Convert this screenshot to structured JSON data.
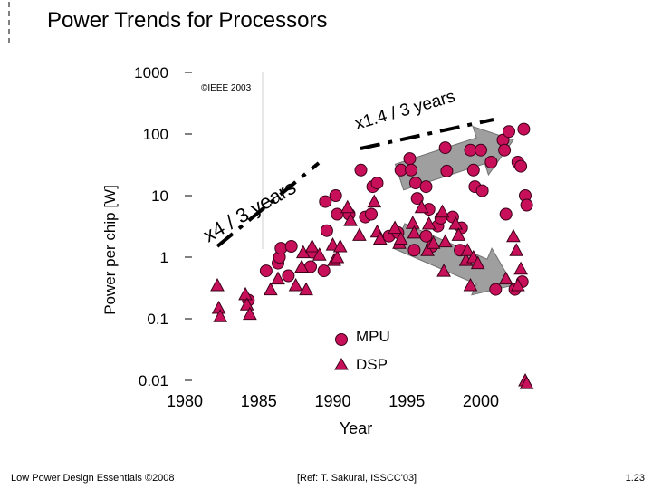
{
  "slide": {
    "title": "Power Trends for Processors",
    "footer_left": "Low Power Design Essentials ©2008",
    "footer_center": "[Ref: T. Sakurai, ISSCC'03]",
    "footer_right": "1.23"
  },
  "colors": {
    "marker_fill": "#c8105a",
    "marker_stroke": "#3a0018",
    "trend_arrow": "#9a9a9a",
    "title_bar": "#000000"
  },
  "chart_data": {
    "type": "scatter",
    "copyright": "©IEEE 2003",
    "xlabel": "Year",
    "ylabel": "Power per chip [W]",
    "x_scale": "linear",
    "y_scale": "log",
    "xlim": [
      1980,
      2003
    ],
    "ylim": [
      0.01,
      1000
    ],
    "x_ticks": [
      "1980",
      "1985",
      "1990",
      "1995",
      "2000"
    ],
    "y_ticks": [
      "1000",
      "100",
      "10",
      "1",
      "0.1",
      "0.01"
    ],
    "legend": {
      "placement": "bottom-right",
      "entries": [
        "MPU",
        "DSP"
      ]
    },
    "annotations": [
      {
        "text": "x4 / 3 years",
        "from": [
          1983.6,
          2.2
        ],
        "to": [
          1989.4,
          25
        ]
      },
      {
        "text": "x1.4 / 3 years",
        "from": [
          1983.6,
          2.2
        ],
        "to": [
          1990.4,
          38
        ],
        "extend_to": [
          2001.6,
          120
        ]
      },
      {
        "text": "x1.4 / 3 years",
        "label_only": true,
        "from": [
          1990.4,
          38
        ],
        "to": [
          2001.6,
          120
        ]
      }
    ],
    "trend_arrows": [
      {
        "from": [
          1994.5,
          20
        ],
        "to": [
          2002.2,
          80
        ],
        "description": "rising trend arrow"
      },
      {
        "from": [
          1994.5,
          2.2
        ],
        "to": [
          2002.2,
          0.35
        ],
        "description": "falling trend arrow"
      }
    ],
    "series": [
      {
        "name": "MPU",
        "marker": "circle",
        "points": [
          [
            1984.3,
            0.2
          ],
          [
            1985.5,
            0.6
          ],
          [
            1986.3,
            0.8
          ],
          [
            1986.4,
            1.0
          ],
          [
            1986.5,
            1.4
          ],
          [
            1987.0,
            0.5
          ],
          [
            1987.2,
            1.5
          ],
          [
            1988.5,
            0.7
          ],
          [
            1988.6,
            1.2
          ],
          [
            1989.4,
            0.6
          ],
          [
            1989.5,
            8
          ],
          [
            1989.6,
            2.7
          ],
          [
            1990.2,
            10
          ],
          [
            1990.3,
            5
          ],
          [
            1991.1,
            5
          ],
          [
            1991.9,
            26
          ],
          [
            1992.2,
            4.5
          ],
          [
            1992.6,
            5
          ],
          [
            1992.7,
            14
          ],
          [
            1993.0,
            16
          ],
          [
            1993.8,
            2.2
          ],
          [
            1994.4,
            2.5
          ],
          [
            1994.6,
            26
          ],
          [
            1995.2,
            40
          ],
          [
            1995.3,
            26
          ],
          [
            1995.5,
            1.3
          ],
          [
            1995.6,
            16
          ],
          [
            1995.7,
            9
          ],
          [
            1996.3,
            14
          ],
          [
            1996.3,
            2.2
          ],
          [
            1996.5,
            6
          ],
          [
            1996.7,
            1.5
          ],
          [
            1997.1,
            3.2
          ],
          [
            1997.3,
            4.3
          ],
          [
            1997.6,
            60
          ],
          [
            1997.7,
            25
          ],
          [
            1998.1,
            4.5
          ],
          [
            1998.6,
            1.3
          ],
          [
            1998.7,
            3
          ],
          [
            1999.3,
            55
          ],
          [
            1999.5,
            26
          ],
          [
            1999.6,
            14
          ],
          [
            2000.0,
            55
          ],
          [
            2000.1,
            12
          ],
          [
            2000.7,
            35
          ],
          [
            2001.0,
            0.3
          ],
          [
            2001.5,
            80
          ],
          [
            2001.6,
            55
          ],
          [
            2001.7,
            5
          ],
          [
            2001.9,
            110
          ],
          [
            2002.3,
            0.3
          ],
          [
            2002.5,
            35
          ],
          [
            2002.7,
            30
          ],
          [
            2002.8,
            0.4
          ],
          [
            2002.9,
            120
          ],
          [
            2003.0,
            10
          ],
          [
            2003.1,
            7
          ]
        ]
      },
      {
        "name": "DSP",
        "marker": "triangle",
        "points": [
          [
            1982.2,
            0.35
          ],
          [
            1982.3,
            0.15
          ],
          [
            1982.4,
            0.11
          ],
          [
            1984.1,
            0.25
          ],
          [
            1984.2,
            0.17
          ],
          [
            1984.4,
            0.12
          ],
          [
            1985.8,
            0.3
          ],
          [
            1986.3,
            0.45
          ],
          [
            1987.5,
            0.35
          ],
          [
            1987.9,
            0.7
          ],
          [
            1988.0,
            1.2
          ],
          [
            1988.2,
            0.3
          ],
          [
            1988.6,
            1.5
          ],
          [
            1989.1,
            1.1
          ],
          [
            1990.0,
            1.6
          ],
          [
            1990.1,
            0.9
          ],
          [
            1990.3,
            1.0
          ],
          [
            1990.5,
            1.5
          ],
          [
            1991.0,
            6.5
          ],
          [
            1991.2,
            4.0
          ],
          [
            1991.8,
            2.3
          ],
          [
            1992.8,
            8.0
          ],
          [
            1993.0,
            2.6
          ],
          [
            1993.2,
            2.0
          ],
          [
            1994.2,
            3.0
          ],
          [
            1994.5,
            1.7
          ],
          [
            1994.6,
            2.0
          ],
          [
            1995.4,
            3.6
          ],
          [
            1995.5,
            2.5
          ],
          [
            1996.0,
            6.5
          ],
          [
            1996.4,
            1.3
          ],
          [
            1996.5,
            3.5
          ],
          [
            1996.8,
            1.7
          ],
          [
            1997.4,
            5.5
          ],
          [
            1997.5,
            0.6
          ],
          [
            1997.6,
            1.8
          ],
          [
            1998.3,
            3.5
          ],
          [
            1998.5,
            2.3
          ],
          [
            1999.0,
            0.9
          ],
          [
            1999.1,
            1.3
          ],
          [
            1999.3,
            0.35
          ],
          [
            1999.5,
            1.0
          ],
          [
            1999.8,
            0.8
          ],
          [
            2001.7,
            0.45
          ],
          [
            2002.2,
            2.2
          ],
          [
            2002.4,
            1.3
          ],
          [
            2002.5,
            0.35
          ],
          [
            2002.7,
            0.65
          ],
          [
            2003.0,
            0.01
          ],
          [
            2003.1,
            0.009
          ]
        ]
      }
    ]
  }
}
